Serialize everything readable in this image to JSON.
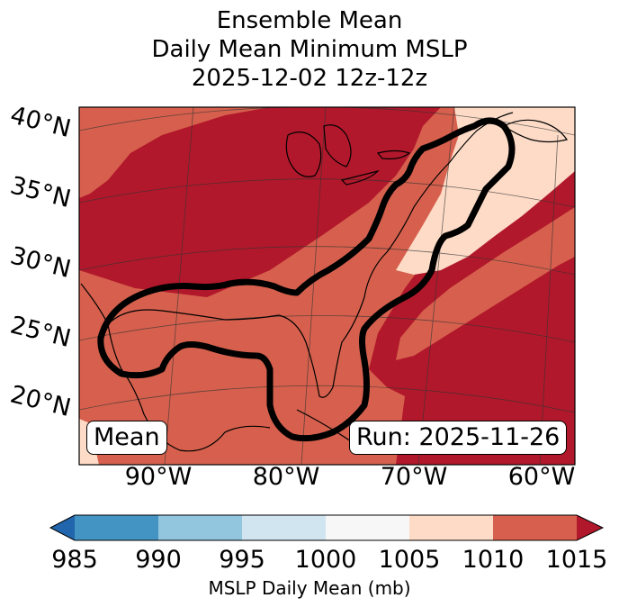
{
  "title": {
    "line1": "Ensemble Mean",
    "line2": "Daily Mean Minimum MSLP",
    "line3": "2025-12-02 12z-12z"
  },
  "map": {
    "lat_labels": [
      "40°N",
      "35°N",
      "30°N",
      "25°N",
      "20°N"
    ],
    "lon_labels": [
      "90°W",
      "80°W",
      "70°W",
      "60°W"
    ],
    "mean_box": "Mean",
    "run_box": "Run: 2025-11-26",
    "fill_colors": {
      "dark_red": "#b2182b",
      "medium_red": "#d6604d",
      "light_peach": "#fddbc7"
    },
    "contour_color": "#000000"
  },
  "colorbar": {
    "label": "MSLP Daily Mean (mb)",
    "ticks": [
      "985",
      "990",
      "995",
      "1000",
      "1005",
      "1010",
      "1015"
    ],
    "colors": [
      "#2166ac",
      "#4393c3",
      "#92c5de",
      "#d1e5f0",
      "#f7f7f7",
      "#fddbc7",
      "#d6604d",
      "#b2182b"
    ]
  }
}
